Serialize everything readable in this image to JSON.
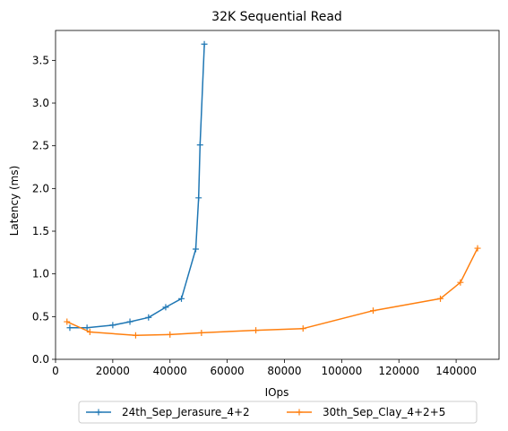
{
  "chart_data": {
    "type": "line",
    "title": "32K  Sequential Read",
    "xlabel": "IOps",
    "ylabel": "Latency (ms)",
    "xlim": [
      0,
      155000
    ],
    "ylim": [
      0,
      3.85
    ],
    "xticks": [
      0,
      20000,
      40000,
      60000,
      80000,
      100000,
      120000,
      140000
    ],
    "xtick_labels": [
      "0",
      "20000",
      "40000",
      "60000",
      "80000",
      "100000",
      "120000",
      "140000"
    ],
    "yticks": [
      0,
      0.5,
      1.0,
      1.5,
      2.0,
      2.5,
      3.0,
      3.5
    ],
    "ytick_labels": [
      "0.0",
      "0.5",
      "1.0",
      "1.5",
      "2.0",
      "2.5",
      "3.0",
      "3.5"
    ],
    "grid": false,
    "legend_position": "bottom-center",
    "marker": "+",
    "series": [
      {
        "name": "24th_Sep_Jerasure_4+2",
        "color": "#1f77b4",
        "x": [
          5000,
          11000,
          20000,
          26000,
          32500,
          38500,
          44000,
          49000,
          50000,
          50500,
          52000
        ],
        "y": [
          0.37,
          0.37,
          0.4,
          0.44,
          0.49,
          0.61,
          0.71,
          1.29,
          1.89,
          2.51,
          3.69
        ]
      },
      {
        "name": "30th_Sep_Clay_4+2+5",
        "color": "#ff7f0e",
        "x": [
          4000,
          12000,
          28000,
          40000,
          51000,
          70000,
          86500,
          111000,
          134500,
          141500,
          147500
        ],
        "y": [
          0.44,
          0.32,
          0.28,
          0.29,
          0.31,
          0.34,
          0.36,
          0.57,
          0.71,
          0.9,
          1.3
        ]
      }
    ]
  }
}
